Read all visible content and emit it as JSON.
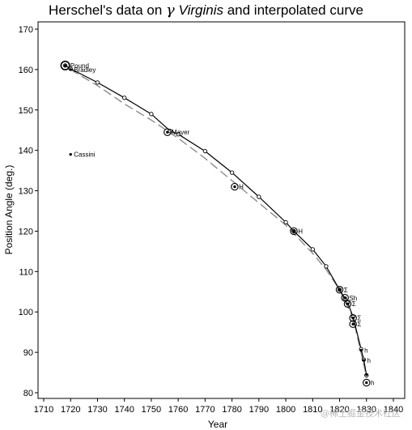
{
  "title": {
    "prefix": "Herschel's data on ",
    "greek": "γ",
    "star": "Virginis",
    "suffix": " and interpolated curve"
  },
  "watermark": "@稀土掘金技术社区",
  "chart_data": {
    "type": "scatter",
    "title": "Herschel's data on γ Virginis and interpolated curve",
    "xlabel": "Year",
    "ylabel": "Position Angle (deg.)",
    "xlim": [
      1710,
      1840
    ],
    "ylim": [
      80,
      170
    ],
    "xticks": [
      1710,
      1720,
      1730,
      1740,
      1750,
      1760,
      1770,
      1780,
      1790,
      1800,
      1810,
      1820,
      1830,
      1840
    ],
    "yticks": [
      80,
      90,
      100,
      110,
      120,
      130,
      140,
      150,
      160,
      170
    ],
    "grid": false,
    "points": [
      {
        "x": 1718,
        "y": 161,
        "weight": "large",
        "label": "Pound"
      },
      {
        "x": 1720,
        "y": 160,
        "weight": "small",
        "label": "Bradley"
      },
      {
        "x": 1720,
        "y": 139,
        "weight": "small",
        "label": "Cassini"
      },
      {
        "x": 1756,
        "y": 144.5,
        "weight": "medium",
        "label": "Mayer"
      },
      {
        "x": 1781,
        "y": 131,
        "weight": "medium",
        "label": "H"
      },
      {
        "x": 1803,
        "y": 120,
        "weight": "medium",
        "label": "H"
      },
      {
        "x": 1820,
        "y": 105.5,
        "weight": "medium",
        "label": "Σ"
      },
      {
        "x": 1822,
        "y": 103.5,
        "weight": "medium",
        "label": "Sh"
      },
      {
        "x": 1823,
        "y": 102,
        "weight": "medium",
        "label": "Σ"
      },
      {
        "x": 1825,
        "y": 98.5,
        "weight": "medium",
        "label": "Σ"
      },
      {
        "x": 1825,
        "y": 97,
        "weight": "medium",
        "label": "Σ"
      },
      {
        "x": 1828,
        "y": 90.5,
        "weight": "small",
        "label": "h"
      },
      {
        "x": 1829,
        "y": 88,
        "weight": "small",
        "label": "h"
      },
      {
        "x": 1830,
        "y": 84.5,
        "weight": "small",
        "label": ""
      },
      {
        "x": 1830,
        "y": 82.5,
        "weight": "medium",
        "label": "h"
      }
    ],
    "interpolated_curve": {
      "x": [
        1718,
        1720,
        1730,
        1740,
        1750,
        1757,
        1760,
        1770,
        1780,
        1790,
        1800,
        1803,
        1810,
        1815,
        1820,
        1822,
        1823,
        1825,
        1828,
        1829,
        1830
      ],
      "y": [
        161,
        160.2,
        156.8,
        153,
        149,
        144.8,
        144,
        139.8,
        134.5,
        128.5,
        122.2,
        120,
        115.5,
        111.3,
        105.5,
        103.3,
        102.3,
        98.8,
        90.8,
        88.2,
        84.3
      ]
    },
    "smooth_curve": {
      "x": [
        1720,
        1730,
        1740,
        1750,
        1760,
        1770,
        1780,
        1790,
        1800,
        1810,
        1815,
        1820,
        1825,
        1830
      ],
      "y": [
        160,
        156,
        151.5,
        147.5,
        143,
        138,
        132.5,
        127,
        121.5,
        114.5,
        110.5,
        105.5,
        98.5,
        84
      ]
    },
    "series_styles": {
      "interpolated_curve": {
        "color": "#000000",
        "dash": "solid"
      },
      "smooth_curve": {
        "color": "#8c8c8c",
        "dash": "dashed"
      }
    }
  }
}
